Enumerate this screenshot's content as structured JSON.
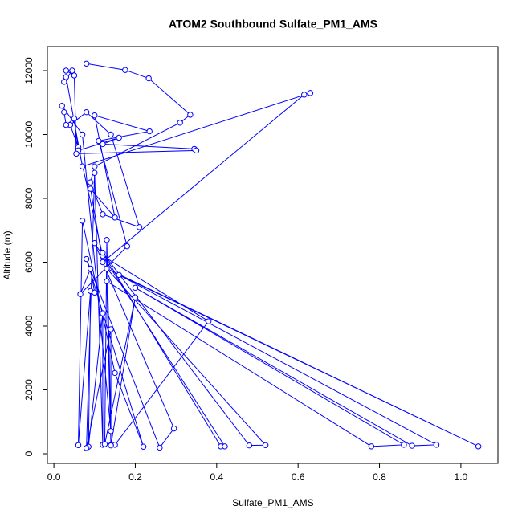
{
  "chart_data": {
    "type": "line",
    "title": "ATOM2 Southbound Sulfate_PM1_AMS",
    "x_label": "Sulfate_PM1_AMS",
    "y_label": "Altitude (m)",
    "color": "#0000ff",
    "xlim": [
      -0.016,
      1.091
    ],
    "ylim": [
      -302,
      12755
    ],
    "xticks": [
      {
        "value": 0,
        "label": "0.0"
      },
      0.2,
      0.4,
      0.6,
      0.8,
      {
        "value": 1,
        "label": "1.0"
      }
    ],
    "yticks": [
      0,
      2000,
      4000,
      6000,
      8000,
      10000,
      12000
    ],
    "x": [
      0.08,
      0.175,
      0.233,
      0.335,
      0.31,
      0.1,
      0.09,
      0.12,
      0.21,
      0.14,
      0.08,
      0.04,
      0.06,
      0.12,
      0.38,
      0.15,
      0.14,
      0.13,
      0.78,
      0.86,
      0.2,
      0.88,
      0.94,
      0.16,
      1.043,
      0.13,
      0.52,
      0.48,
      0.12,
      0.41,
      0.42,
      0.1,
      0.295,
      0.26,
      0.08,
      0.22,
      0.15,
      0.07,
      0.06,
      0.09,
      0.085,
      0.12,
      0.12,
      0.1,
      0.08,
      0.14,
      0.14,
      0.2,
      0.125,
      0.13,
      0.14,
      0.07,
      0.02,
      0.025,
      0.03,
      0.05,
      0.06,
      0.16,
      0.12,
      0.345,
      0.35,
      0.055,
      0.05,
      0.03,
      0.045,
      0.025,
      0.03,
      0.07,
      0.63,
      0.615,
      0.12,
      0.09,
      0.15,
      0.1,
      0.235,
      0.11,
      0.18,
      0.065,
      0.09,
      0.1
    ],
    "values": [
      12220,
      12020,
      11760,
      10620,
      10370,
      9000,
      8500,
      7500,
      7100,
      10000,
      10700,
      10300,
      9600,
      6200,
      4150,
      280,
      270,
      5400,
      230,
      280,
      5200,
      250,
      280,
      5600,
      230,
      5800,
      270,
      260,
      6300,
      230,
      230,
      6600,
      790,
      190,
      6100,
      220,
      2530,
      7300,
      270,
      5100,
      220,
      4400,
      280,
      8800,
      180,
      3900,
      260,
      4900,
      300,
      6700,
      710,
      10000,
      10900,
      10700,
      10300,
      10500,
      9500,
      9900,
      9700,
      9550,
      9500,
      9400,
      11850,
      12000,
      12000,
      11650,
      11800,
      9000,
      11300,
      11250,
      6000,
      8300,
      7400,
      10600,
      10100,
      9800,
      6500,
      5000,
      5800,
      5050
    ]
  }
}
